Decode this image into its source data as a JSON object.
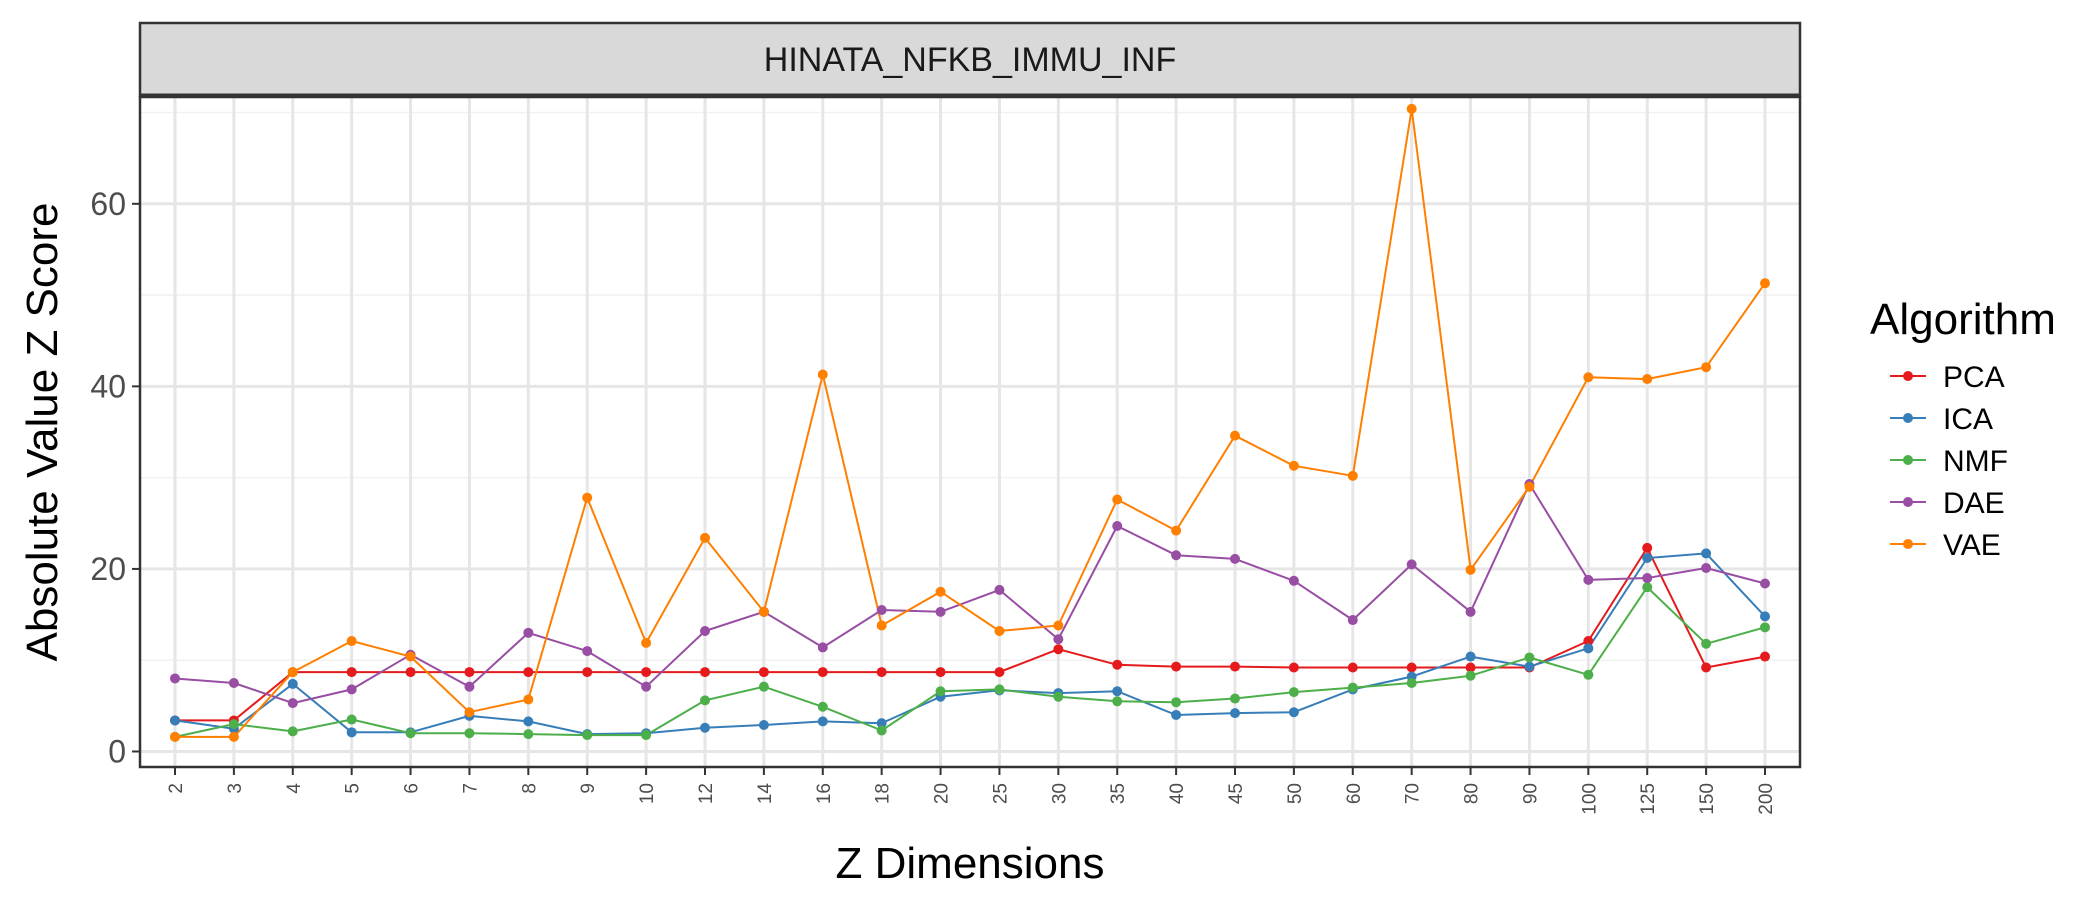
{
  "chart_data": {
    "type": "line",
    "panel_title": "HINATA_NFKB_IMMU_INF",
    "xlabel": "Z Dimensions",
    "ylabel": "Absolute Value Z Score",
    "legend_title": "Algorithm",
    "legend_position": "right",
    "grid": true,
    "ylim": [
      -1.7,
      71.7
    ],
    "y_ticks": [
      0,
      20,
      40,
      60
    ],
    "categories": [
      "2",
      "3",
      "4",
      "5",
      "6",
      "7",
      "8",
      "9",
      "10",
      "12",
      "14",
      "16",
      "18",
      "20",
      "25",
      "30",
      "35",
      "40",
      "45",
      "50",
      "60",
      "70",
      "80",
      "90",
      "100",
      "125",
      "150",
      "200"
    ],
    "series": [
      {
        "name": "PCA",
        "color": "#e41a1c",
        "values": [
          3.4,
          3.4,
          8.7,
          8.7,
          8.7,
          8.7,
          8.7,
          8.7,
          8.7,
          8.7,
          8.7,
          8.7,
          8.7,
          8.7,
          8.7,
          11.2,
          9.5,
          9.3,
          9.3,
          9.2,
          9.2,
          9.2,
          9.2,
          9.2,
          12.1,
          22.3,
          9.2,
          10.4
        ]
      },
      {
        "name": "ICA",
        "color": "#377eb8",
        "values": [
          3.4,
          2.5,
          7.4,
          2.1,
          2.1,
          3.9,
          3.3,
          1.9,
          2.0,
          2.6,
          2.9,
          3.3,
          3.1,
          6.0,
          6.7,
          6.4,
          6.6,
          4.0,
          4.2,
          4.3,
          6.8,
          8.2,
          10.4,
          9.3,
          11.3,
          21.2,
          21.7,
          14.8
        ]
      },
      {
        "name": "NMF",
        "color": "#4daf4a",
        "values": [
          1.6,
          3.0,
          2.2,
          3.5,
          2.0,
          2.0,
          1.9,
          1.8,
          1.8,
          5.6,
          7.1,
          4.9,
          2.3,
          6.6,
          6.8,
          6.0,
          5.5,
          5.4,
          5.8,
          6.5,
          7.0,
          7.5,
          8.3,
          10.3,
          8.4,
          18.0,
          11.8,
          13.6
        ]
      },
      {
        "name": "DAE",
        "color": "#984ea3",
        "values": [
          8.0,
          7.5,
          5.3,
          6.8,
          10.6,
          7.1,
          13.0,
          11.0,
          7.1,
          13.2,
          15.3,
          11.4,
          15.5,
          15.3,
          17.7,
          12.3,
          24.7,
          21.5,
          21.1,
          18.7,
          14.4,
          20.5,
          15.3,
          29.3,
          18.8,
          19.0,
          20.1,
          18.4
        ]
      },
      {
        "name": "VAE",
        "color": "#ff7f00",
        "values": [
          1.6,
          1.6,
          8.7,
          12.1,
          10.4,
          4.3,
          5.7,
          27.8,
          11.9,
          23.4,
          15.3,
          41.3,
          13.8,
          17.5,
          13.2,
          13.8,
          27.6,
          24.2,
          34.6,
          31.3,
          30.2,
          70.4,
          19.9,
          29.0,
          41.0,
          40.8,
          42.1,
          51.3
        ]
      }
    ]
  }
}
